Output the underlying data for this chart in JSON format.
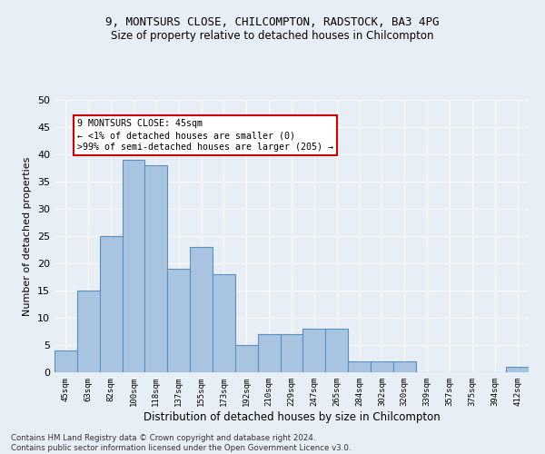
{
  "title_line1": "9, MONTSURS CLOSE, CHILCOMPTON, RADSTOCK, BA3 4PG",
  "title_line2": "Size of property relative to detached houses in Chilcompton",
  "xlabel": "Distribution of detached houses by size in Chilcompton",
  "ylabel": "Number of detached properties",
  "categories": [
    "45sqm",
    "63sqm",
    "82sqm",
    "100sqm",
    "118sqm",
    "137sqm",
    "155sqm",
    "173sqm",
    "192sqm",
    "210sqm",
    "229sqm",
    "247sqm",
    "265sqm",
    "284sqm",
    "302sqm",
    "320sqm",
    "339sqm",
    "357sqm",
    "375sqm",
    "394sqm",
    "412sqm"
  ],
  "values": [
    4,
    15,
    25,
    39,
    38,
    19,
    23,
    18,
    5,
    7,
    7,
    8,
    8,
    2,
    2,
    2,
    0,
    0,
    0,
    0,
    1
  ],
  "bar_color": "#a8c4e0",
  "bar_edge_color": "#5a8fc0",
  "annotation_title": "9 MONTSURS CLOSE: 45sqm",
  "annotation_line2": "← <1% of detached houses are smaller (0)",
  "annotation_line3": ">99% of semi-detached houses are larger (205) →",
  "annotation_box_color": "#ffffff",
  "annotation_box_edge": "#cc0000",
  "ylim": [
    0,
    50
  ],
  "yticks": [
    0,
    5,
    10,
    15,
    20,
    25,
    30,
    35,
    40,
    45,
    50
  ],
  "footer_line1": "Contains HM Land Registry data © Crown copyright and database right 2024.",
  "footer_line2": "Contains public sector information licensed under the Open Government Licence v3.0.",
  "bg_color": "#e8eef5",
  "plot_bg_color": "#e8eef5",
  "grid_color": "#ffffff"
}
